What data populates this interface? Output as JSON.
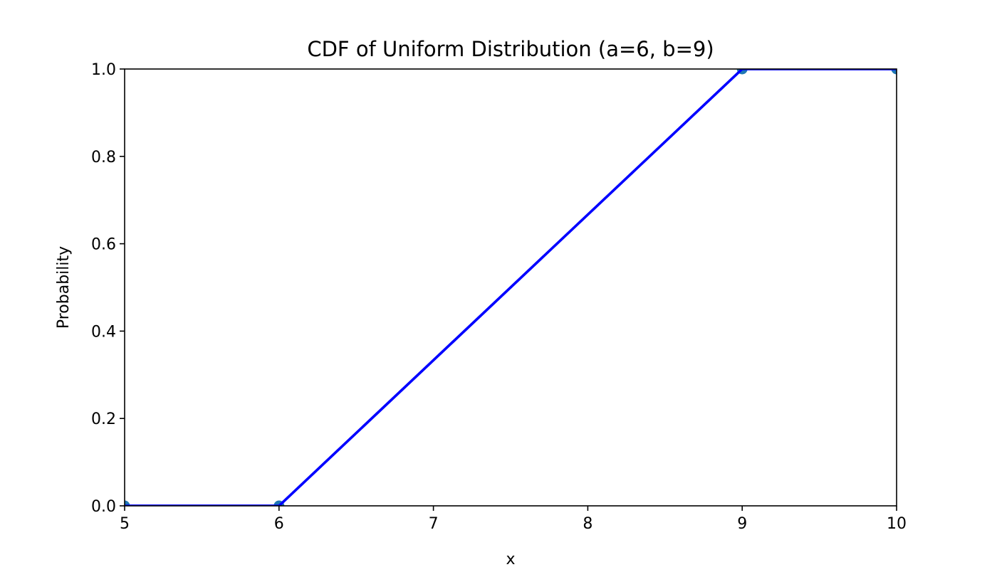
{
  "chart_data": {
    "type": "line",
    "title": "CDF of Uniform Distribution (a=6, b=9)",
    "xlabel": "x",
    "ylabel": "Probability",
    "xlim": [
      5,
      10
    ],
    "ylim": [
      0,
      1
    ],
    "xticks": [
      5,
      6,
      7,
      8,
      9,
      10
    ],
    "xtick_labels": [
      "5",
      "6",
      "7",
      "8",
      "9",
      "10"
    ],
    "yticks": [
      0.0,
      0.2,
      0.4,
      0.6,
      0.8,
      1.0
    ],
    "ytick_labels": [
      "0.0",
      "0.2",
      "0.4",
      "0.6",
      "0.8",
      "1.0"
    ],
    "grid": false,
    "legend": "none",
    "series": [
      {
        "kind": "line",
        "color": "#0000ff",
        "x": [
          5,
          6,
          9,
          10
        ],
        "y": [
          0,
          0,
          1,
          1
        ]
      },
      {
        "kind": "scatter",
        "color": "#1f77b4",
        "x": [
          5,
          6,
          9,
          10
        ],
        "y": [
          0,
          0,
          1,
          1
        ]
      }
    ]
  }
}
